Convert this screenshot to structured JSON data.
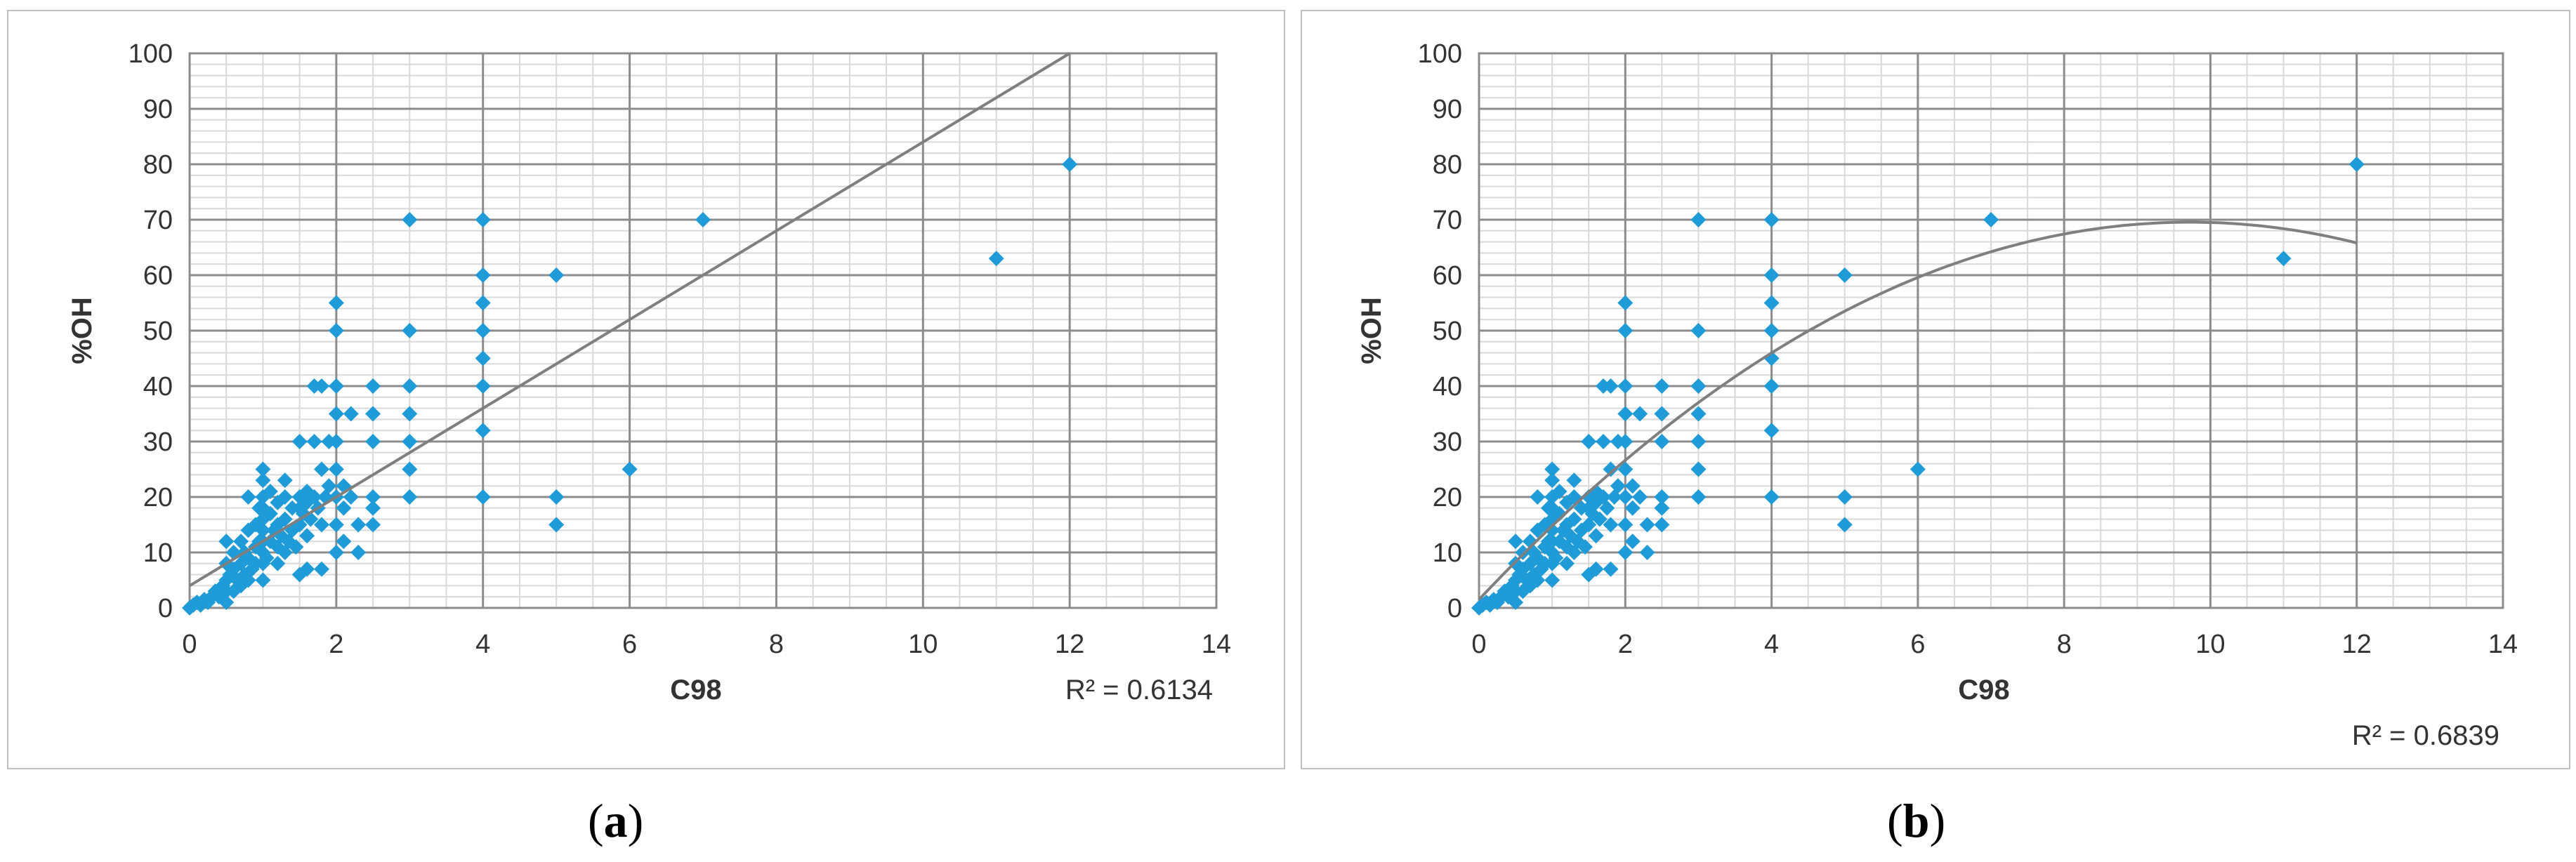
{
  "charts": [
    {
      "caption_open": "(",
      "caption_letter": "a",
      "caption_close": ")",
      "r2_label": "R² = 0.6134"
    },
    {
      "caption_open": "(",
      "caption_letter": "b",
      "caption_close": ")",
      "r2_label": "R² = 0.6839"
    }
  ],
  "chart_data": [
    {
      "type": "scatter",
      "title": "",
      "xlabel": "C98",
      "ylabel": "%OH",
      "xlim": [
        0,
        14
      ],
      "ylim": [
        0,
        100
      ],
      "xticks": [
        0,
        2,
        4,
        6,
        8,
        10,
        12,
        14
      ],
      "yticks": [
        0,
        10,
        20,
        30,
        40,
        50,
        60,
        70,
        80,
        90,
        100
      ],
      "grid": true,
      "marker_color": "#1f9bd7",
      "trendline": {
        "type": "linear",
        "slope": 8.0,
        "intercept": 4.0,
        "color": "#7f7f7f",
        "r2": 0.6134
      },
      "points": [
        [
          0,
          0
        ],
        [
          0.05,
          0.5
        ],
        [
          0.1,
          1
        ],
        [
          0.15,
          0.5
        ],
        [
          0.2,
          1.5
        ],
        [
          0.25,
          1
        ],
        [
          0.3,
          2
        ],
        [
          0.35,
          3
        ],
        [
          0.4,
          2
        ],
        [
          0.45,
          4
        ],
        [
          0.5,
          1
        ],
        [
          0.5,
          3
        ],
        [
          0.5,
          5
        ],
        [
          0.5,
          8
        ],
        [
          0.5,
          12
        ],
        [
          0.55,
          6
        ],
        [
          0.6,
          3
        ],
        [
          0.6,
          7
        ],
        [
          0.6,
          10
        ],
        [
          0.65,
          5
        ],
        [
          0.7,
          4
        ],
        [
          0.7,
          8
        ],
        [
          0.7,
          12
        ],
        [
          0.75,
          6
        ],
        [
          0.75,
          10
        ],
        [
          0.8,
          5
        ],
        [
          0.8,
          9
        ],
        [
          0.8,
          14
        ],
        [
          0.8,
          20
        ],
        [
          0.85,
          7
        ],
        [
          0.9,
          11
        ],
        [
          0.9,
          15
        ],
        [
          0.9,
          8
        ],
        [
          0.95,
          12
        ],
        [
          0.95,
          18
        ],
        [
          1,
          5
        ],
        [
          1,
          8
        ],
        [
          1,
          10
        ],
        [
          1,
          12
        ],
        [
          1,
          14
        ],
        [
          1,
          16
        ],
        [
          1,
          18
        ],
        [
          1,
          20
        ],
        [
          1,
          23
        ],
        [
          1,
          25
        ],
        [
          1.05,
          9
        ],
        [
          1.1,
          12
        ],
        [
          1.1,
          17
        ],
        [
          1.1,
          21
        ],
        [
          1.15,
          14
        ],
        [
          1.2,
          8
        ],
        [
          1.2,
          11
        ],
        [
          1.2,
          15
        ],
        [
          1.2,
          19
        ],
        [
          1.25,
          13
        ],
        [
          1.3,
          10
        ],
        [
          1.3,
          16
        ],
        [
          1.3,
          20
        ],
        [
          1.3,
          23
        ],
        [
          1.35,
          12
        ],
        [
          1.4,
          14
        ],
        [
          1.4,
          18
        ],
        [
          1.45,
          11
        ],
        [
          1.5,
          6
        ],
        [
          1.5,
          15
        ],
        [
          1.5,
          18
        ],
        [
          1.5,
          20
        ],
        [
          1.5,
          30
        ],
        [
          1.55,
          17
        ],
        [
          1.6,
          7
        ],
        [
          1.6,
          13
        ],
        [
          1.6,
          19
        ],
        [
          1.6,
          21
        ],
        [
          1.65,
          16
        ],
        [
          1.7,
          30
        ],
        [
          1.7,
          40
        ],
        [
          1.7,
          20
        ],
        [
          1.75,
          18
        ],
        [
          1.8,
          7
        ],
        [
          1.8,
          15
        ],
        [
          1.8,
          25
        ],
        [
          1.8,
          40
        ],
        [
          1.85,
          20
        ],
        [
          1.9,
          30
        ],
        [
          1.9,
          22
        ],
        [
          2,
          10
        ],
        [
          2,
          15
        ],
        [
          2,
          20
        ],
        [
          2,
          25
        ],
        [
          2,
          30
        ],
        [
          2,
          35
        ],
        [
          2,
          40
        ],
        [
          2,
          50
        ],
        [
          2,
          55
        ],
        [
          2.1,
          12
        ],
        [
          2.1,
          18
        ],
        [
          2.1,
          22
        ],
        [
          2.2,
          35
        ],
        [
          2.2,
          20
        ],
        [
          2.3,
          10
        ],
        [
          2.3,
          15
        ],
        [
          2.5,
          15
        ],
        [
          2.5,
          18
        ],
        [
          2.5,
          20
        ],
        [
          2.5,
          30
        ],
        [
          2.5,
          35
        ],
        [
          2.5,
          40
        ],
        [
          3,
          20
        ],
        [
          3,
          25
        ],
        [
          3,
          30
        ],
        [
          3,
          35
        ],
        [
          3,
          40
        ],
        [
          3,
          50
        ],
        [
          3,
          70
        ],
        [
          4,
          20
        ],
        [
          4,
          32
        ],
        [
          4,
          40
        ],
        [
          4,
          45
        ],
        [
          4,
          50
        ],
        [
          4,
          55
        ],
        [
          4,
          60
        ],
        [
          4,
          70
        ],
        [
          5,
          15
        ],
        [
          5,
          20
        ],
        [
          5,
          60
        ],
        [
          6,
          25
        ],
        [
          7,
          70
        ],
        [
          11,
          63
        ],
        [
          12,
          80
        ]
      ]
    },
    {
      "type": "scatter",
      "title": "",
      "xlabel": "C98",
      "ylabel": "%OH",
      "xlim": [
        0,
        14
      ],
      "ylim": [
        0,
        100
      ],
      "xticks": [
        0,
        2,
        4,
        6,
        8,
        10,
        12,
        14
      ],
      "yticks": [
        0,
        10,
        20,
        30,
        40,
        50,
        60,
        70,
        80,
        90,
        100
      ],
      "grid": true,
      "marker_color": "#1f9bd7",
      "trendline": {
        "type": "polynomial",
        "coefficients": [
          -0.72,
          14.0,
          1.5
        ],
        "x_range": [
          0,
          12
        ],
        "color": "#7f7f7f",
        "r2": 0.6839
      },
      "points": [
        [
          0,
          0
        ],
        [
          0.05,
          0.5
        ],
        [
          0.1,
          1
        ],
        [
          0.15,
          0.5
        ],
        [
          0.2,
          1.5
        ],
        [
          0.25,
          1
        ],
        [
          0.3,
          2
        ],
        [
          0.35,
          3
        ],
        [
          0.4,
          2
        ],
        [
          0.45,
          4
        ],
        [
          0.5,
          1
        ],
        [
          0.5,
          3
        ],
        [
          0.5,
          5
        ],
        [
          0.5,
          8
        ],
        [
          0.5,
          12
        ],
        [
          0.55,
          6
        ],
        [
          0.6,
          3
        ],
        [
          0.6,
          7
        ],
        [
          0.6,
          10
        ],
        [
          0.65,
          5
        ],
        [
          0.7,
          4
        ],
        [
          0.7,
          8
        ],
        [
          0.7,
          12
        ],
        [
          0.75,
          6
        ],
        [
          0.75,
          10
        ],
        [
          0.8,
          5
        ],
        [
          0.8,
          9
        ],
        [
          0.8,
          14
        ],
        [
          0.8,
          20
        ],
        [
          0.85,
          7
        ],
        [
          0.9,
          11
        ],
        [
          0.9,
          15
        ],
        [
          0.9,
          8
        ],
        [
          0.95,
          12
        ],
        [
          0.95,
          18
        ],
        [
          1,
          5
        ],
        [
          1,
          8
        ],
        [
          1,
          10
        ],
        [
          1,
          12
        ],
        [
          1,
          14
        ],
        [
          1,
          16
        ],
        [
          1,
          18
        ],
        [
          1,
          20
        ],
        [
          1,
          23
        ],
        [
          1,
          25
        ],
        [
          1.05,
          9
        ],
        [
          1.1,
          12
        ],
        [
          1.1,
          17
        ],
        [
          1.1,
          21
        ],
        [
          1.15,
          14
        ],
        [
          1.2,
          8
        ],
        [
          1.2,
          11
        ],
        [
          1.2,
          15
        ],
        [
          1.2,
          19
        ],
        [
          1.25,
          13
        ],
        [
          1.3,
          10
        ],
        [
          1.3,
          16
        ],
        [
          1.3,
          20
        ],
        [
          1.3,
          23
        ],
        [
          1.35,
          12
        ],
        [
          1.4,
          14
        ],
        [
          1.4,
          18
        ],
        [
          1.45,
          11
        ],
        [
          1.5,
          6
        ],
        [
          1.5,
          15
        ],
        [
          1.5,
          18
        ],
        [
          1.5,
          20
        ],
        [
          1.5,
          30
        ],
        [
          1.55,
          17
        ],
        [
          1.6,
          7
        ],
        [
          1.6,
          13
        ],
        [
          1.6,
          19
        ],
        [
          1.6,
          21
        ],
        [
          1.65,
          16
        ],
        [
          1.7,
          30
        ],
        [
          1.7,
          40
        ],
        [
          1.7,
          20
        ],
        [
          1.75,
          18
        ],
        [
          1.8,
          7
        ],
        [
          1.8,
          15
        ],
        [
          1.8,
          25
        ],
        [
          1.8,
          40
        ],
        [
          1.85,
          20
        ],
        [
          1.9,
          30
        ],
        [
          1.9,
          22
        ],
        [
          2,
          10
        ],
        [
          2,
          15
        ],
        [
          2,
          20
        ],
        [
          2,
          25
        ],
        [
          2,
          30
        ],
        [
          2,
          35
        ],
        [
          2,
          40
        ],
        [
          2,
          50
        ],
        [
          2,
          55
        ],
        [
          2.1,
          12
        ],
        [
          2.1,
          18
        ],
        [
          2.1,
          22
        ],
        [
          2.2,
          35
        ],
        [
          2.2,
          20
        ],
        [
          2.3,
          10
        ],
        [
          2.3,
          15
        ],
        [
          2.5,
          15
        ],
        [
          2.5,
          18
        ],
        [
          2.5,
          20
        ],
        [
          2.5,
          30
        ],
        [
          2.5,
          35
        ],
        [
          2.5,
          40
        ],
        [
          3,
          20
        ],
        [
          3,
          25
        ],
        [
          3,
          30
        ],
        [
          3,
          35
        ],
        [
          3,
          40
        ],
        [
          3,
          50
        ],
        [
          3,
          70
        ],
        [
          4,
          20
        ],
        [
          4,
          32
        ],
        [
          4,
          40
        ],
        [
          4,
          45
        ],
        [
          4,
          50
        ],
        [
          4,
          55
        ],
        [
          4,
          60
        ],
        [
          4,
          70
        ],
        [
          5,
          15
        ],
        [
          5,
          20
        ],
        [
          5,
          60
        ],
        [
          6,
          25
        ],
        [
          7,
          70
        ],
        [
          11,
          63
        ],
        [
          12,
          80
        ]
      ]
    }
  ]
}
